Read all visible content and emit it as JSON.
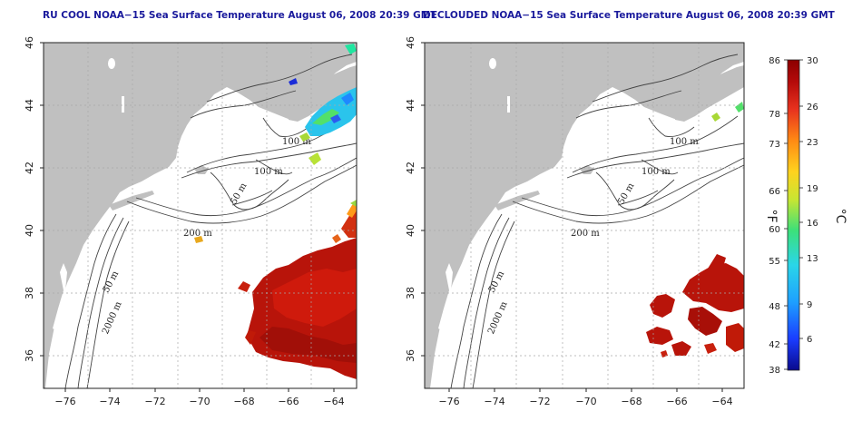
{
  "left_panel": {
    "title": "RU COOL NOAA−15 Sea Surface Temperature August 06, 2008 20:39 GMT"
  },
  "right_panel": {
    "title": "DECLOUDED NOAA−15 Sea Surface Temperature August 06, 2008 20:39 GMT"
  },
  "axes": {
    "lon_ticks": [
      "−76",
      "−74",
      "−72",
      "−70",
      "−68",
      "−66",
      "−64"
    ],
    "lat_ticks": [
      "36",
      "38",
      "40",
      "42",
      "44",
      "46"
    ],
    "lon_range": [
      -77,
      -63
    ],
    "lat_range": [
      35,
      46
    ]
  },
  "contour_labels": {
    "left": [
      "100 m",
      "100 m",
      "50 m",
      "200 m",
      "50 m",
      "2000 m"
    ],
    "right": [
      "100 m",
      "100 m",
      "50 m",
      "200 m",
      "50 m",
      "2000 m"
    ]
  },
  "colorbar": {
    "fahrenheit_ticks": [
      "86",
      "78",
      "73",
      "66",
      "60",
      "55",
      "48",
      "42",
      "38"
    ],
    "celsius_ticks": [
      "30",
      "26",
      "23",
      "19",
      "16",
      "13",
      "9",
      "6"
    ],
    "fahrenheit_unit": "°F",
    "celsius_unit": "°C",
    "range_c": [
      3.3,
      30
    ],
    "colors": [
      "#0a0a8c",
      "#1a3cff",
      "#1ea0ff",
      "#2ad6e8",
      "#3ce07a",
      "#c8e632",
      "#ffd21e",
      "#ff8a14",
      "#e8321e",
      "#b40a0a",
      "#8c0000"
    ]
  },
  "colors": {
    "land": "#c0c0c0",
    "ocean": "#ffffff",
    "warm_sst": "#b8140a",
    "title": "#1a1a9c"
  }
}
